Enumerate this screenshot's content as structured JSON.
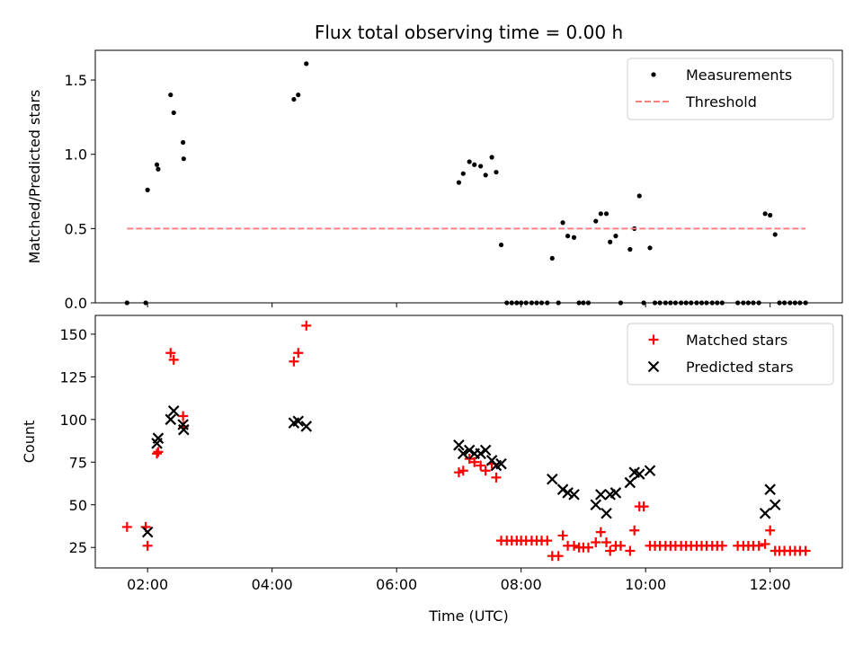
{
  "chart_data": [
    {
      "type": "scatter",
      "title": "Flux total observing time = 0.00 h",
      "xlabel": "",
      "ylabel": "Matched/Predicted stars",
      "xlim": [
        1.16,
        13.16
      ],
      "ylim": [
        0.0,
        1.7
      ],
      "x_unit": "hours UTC",
      "yticks": [
        0.0,
        0.5,
        1.0,
        1.5
      ],
      "ytick_labels": [
        "0.0",
        "0.5",
        "1.0",
        "1.5"
      ],
      "legend_placement": "top-right",
      "legend": [
        "Measurements",
        "Threshold"
      ],
      "series": [
        {
          "name": "Measurements",
          "marker": "dot",
          "color": "#000000",
          "points": [
            [
              1.67,
              0.0
            ],
            [
              1.97,
              0.0
            ],
            [
              2.0,
              0.76
            ],
            [
              2.15,
              0.93
            ],
            [
              2.17,
              0.9
            ],
            [
              2.37,
              1.4
            ],
            [
              2.42,
              1.28
            ],
            [
              2.57,
              1.08
            ],
            [
              2.58,
              0.97
            ],
            [
              4.35,
              1.37
            ],
            [
              4.42,
              1.4
            ],
            [
              4.55,
              1.61
            ],
            [
              7.0,
              0.81
            ],
            [
              7.07,
              0.87
            ],
            [
              7.17,
              0.95
            ],
            [
              7.25,
              0.93
            ],
            [
              7.35,
              0.92
            ],
            [
              7.43,
              0.86
            ],
            [
              7.53,
              0.98
            ],
            [
              7.6,
              0.88
            ],
            [
              7.68,
              0.39
            ],
            [
              7.77,
              0.0
            ],
            [
              7.85,
              0.0
            ],
            [
              7.93,
              0.0
            ],
            [
              8.0,
              0.0
            ],
            [
              8.08,
              0.0
            ],
            [
              8.17,
              0.0
            ],
            [
              8.25,
              0.0
            ],
            [
              8.33,
              0.0
            ],
            [
              8.42,
              0.0
            ],
            [
              8.5,
              0.3
            ],
            [
              8.6,
              0.0
            ],
            [
              8.67,
              0.54
            ],
            [
              8.75,
              0.45
            ],
            [
              8.85,
              0.44
            ],
            [
              8.93,
              0.0
            ],
            [
              9.0,
              0.0
            ],
            [
              9.08,
              0.0
            ],
            [
              9.2,
              0.55
            ],
            [
              9.28,
              0.6
            ],
            [
              9.37,
              0.6
            ],
            [
              9.43,
              0.41
            ],
            [
              9.52,
              0.45
            ],
            [
              9.6,
              0.0
            ],
            [
              9.75,
              0.36
            ],
            [
              9.82,
              0.5
            ],
            [
              9.9,
              0.72
            ],
            [
              9.97,
              0.0
            ],
            [
              10.07,
              0.37
            ],
            [
              10.15,
              0.0
            ],
            [
              10.23,
              0.0
            ],
            [
              10.32,
              0.0
            ],
            [
              10.4,
              0.0
            ],
            [
              10.48,
              0.0
            ],
            [
              10.57,
              0.0
            ],
            [
              10.65,
              0.0
            ],
            [
              10.73,
              0.0
            ],
            [
              10.82,
              0.0
            ],
            [
              10.9,
              0.0
            ],
            [
              10.98,
              0.0
            ],
            [
              11.07,
              0.0
            ],
            [
              11.15,
              0.0
            ],
            [
              11.23,
              0.0
            ],
            [
              11.48,
              0.0
            ],
            [
              11.57,
              0.0
            ],
            [
              11.65,
              0.0
            ],
            [
              11.73,
              0.0
            ],
            [
              11.82,
              0.0
            ],
            [
              11.92,
              0.6
            ],
            [
              12.0,
              0.59
            ],
            [
              12.08,
              0.46
            ],
            [
              12.15,
              0.0
            ],
            [
              12.23,
              0.0
            ],
            [
              12.32,
              0.0
            ],
            [
              12.4,
              0.0
            ],
            [
              12.48,
              0.0
            ],
            [
              12.57,
              0.0
            ]
          ]
        },
        {
          "name": "Threshold",
          "style": "dashed",
          "color": "#ff7f7f",
          "x": [
            1.67,
            12.57
          ],
          "y": [
            0.5,
            0.5
          ]
        }
      ]
    },
    {
      "type": "scatter",
      "xlabel": "Time (UTC)",
      "ylabel": "Count",
      "xlim": [
        1.16,
        13.16
      ],
      "ylim": [
        13,
        161
      ],
      "x_unit": "hours UTC",
      "xticks": [
        2,
        4,
        6,
        8,
        10,
        12
      ],
      "xtick_labels": [
        "02:00",
        "04:00",
        "06:00",
        "08:00",
        "10:00",
        "12:00"
      ],
      "yticks": [
        25,
        50,
        75,
        100,
        125,
        150
      ],
      "ytick_labels": [
        "25",
        "50",
        "75",
        "100",
        "125",
        "150"
      ],
      "legend_placement": "top-right",
      "legend": [
        "Matched stars",
        "Predicted stars"
      ],
      "series": [
        {
          "name": "Matched stars",
          "marker": "plus",
          "color": "#ff0000",
          "points": [
            [
              1.67,
              37
            ],
            [
              1.97,
              37
            ],
            [
              2.0,
              26
            ],
            [
              2.15,
              80
            ],
            [
              2.17,
              81
            ],
            [
              2.37,
              139
            ],
            [
              2.42,
              135
            ],
            [
              2.57,
              102
            ],
            [
              2.58,
              96
            ],
            [
              4.35,
              134
            ],
            [
              4.42,
              139
            ],
            [
              4.55,
              155
            ],
            [
              7.0,
              69
            ],
            [
              7.07,
              70
            ],
            [
              7.17,
              77
            ],
            [
              7.25,
              75
            ],
            [
              7.35,
              73
            ],
            [
              7.43,
              70
            ],
            [
              7.53,
              74
            ],
            [
              7.6,
              66
            ],
            [
              7.68,
              29
            ],
            [
              7.77,
              29
            ],
            [
              7.85,
              29
            ],
            [
              7.93,
              29
            ],
            [
              8.0,
              29
            ],
            [
              8.08,
              29
            ],
            [
              8.17,
              29
            ],
            [
              8.25,
              29
            ],
            [
              8.33,
              29
            ],
            [
              8.42,
              29
            ],
            [
              8.5,
              20
            ],
            [
              8.6,
              20
            ],
            [
              8.67,
              32
            ],
            [
              8.75,
              26
            ],
            [
              8.85,
              26
            ],
            [
              8.93,
              25
            ],
            [
              9.0,
              25
            ],
            [
              9.08,
              25
            ],
            [
              9.2,
              28
            ],
            [
              9.28,
              34
            ],
            [
              9.37,
              28
            ],
            [
              9.43,
              23
            ],
            [
              9.52,
              26
            ],
            [
              9.6,
              26
            ],
            [
              9.75,
              23
            ],
            [
              9.82,
              35
            ],
            [
              9.9,
              49
            ],
            [
              9.97,
              49
            ],
            [
              10.07,
              26
            ],
            [
              10.15,
              26
            ],
            [
              10.23,
              26
            ],
            [
              10.32,
              26
            ],
            [
              10.4,
              26
            ],
            [
              10.48,
              26
            ],
            [
              10.57,
              26
            ],
            [
              10.65,
              26
            ],
            [
              10.73,
              26
            ],
            [
              10.82,
              26
            ],
            [
              10.9,
              26
            ],
            [
              10.98,
              26
            ],
            [
              11.07,
              26
            ],
            [
              11.15,
              26
            ],
            [
              11.23,
              26
            ],
            [
              11.48,
              26
            ],
            [
              11.57,
              26
            ],
            [
              11.65,
              26
            ],
            [
              11.73,
              26
            ],
            [
              11.82,
              26
            ],
            [
              11.92,
              27
            ],
            [
              12.0,
              35
            ],
            [
              12.08,
              23
            ],
            [
              12.15,
              23
            ],
            [
              12.23,
              23
            ],
            [
              12.32,
              23
            ],
            [
              12.4,
              23
            ],
            [
              12.48,
              23
            ],
            [
              12.57,
              23
            ]
          ]
        },
        {
          "name": "Predicted stars",
          "marker": "x",
          "color": "#000000",
          "points": [
            [
              2.0,
              34
            ],
            [
              2.15,
              86
            ],
            [
              2.17,
              89
            ],
            [
              2.37,
              100
            ],
            [
              2.42,
              105
            ],
            [
              2.57,
              97
            ],
            [
              2.58,
              94
            ],
            [
              4.35,
              98
            ],
            [
              4.42,
              99
            ],
            [
              4.55,
              96
            ],
            [
              7.0,
              85
            ],
            [
              7.07,
              80
            ],
            [
              7.17,
              82
            ],
            [
              7.25,
              80
            ],
            [
              7.35,
              80
            ],
            [
              7.43,
              82
            ],
            [
              7.53,
              76
            ],
            [
              7.6,
              73
            ],
            [
              7.68,
              74
            ],
            [
              8.5,
              65
            ],
            [
              8.67,
              59
            ],
            [
              8.75,
              57
            ],
            [
              8.85,
              56
            ],
            [
              9.2,
              50
            ],
            [
              9.28,
              56
            ],
            [
              9.37,
              45
            ],
            [
              9.43,
              56
            ],
            [
              9.52,
              57
            ],
            [
              9.75,
              63
            ],
            [
              9.82,
              69
            ],
            [
              9.9,
              68
            ],
            [
              10.07,
              70
            ],
            [
              11.92,
              45
            ],
            [
              12.0,
              59
            ],
            [
              12.08,
              50
            ]
          ]
        }
      ]
    }
  ]
}
